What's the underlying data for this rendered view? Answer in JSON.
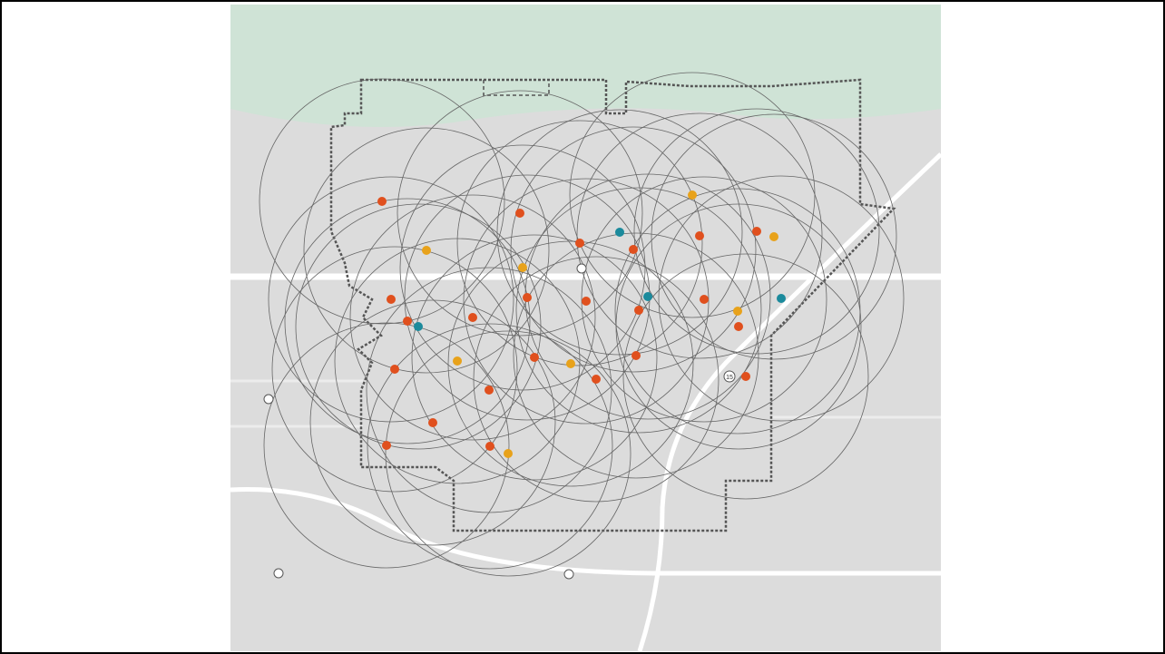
{
  "map": {
    "shields": [
      "15"
    ]
  }
}
